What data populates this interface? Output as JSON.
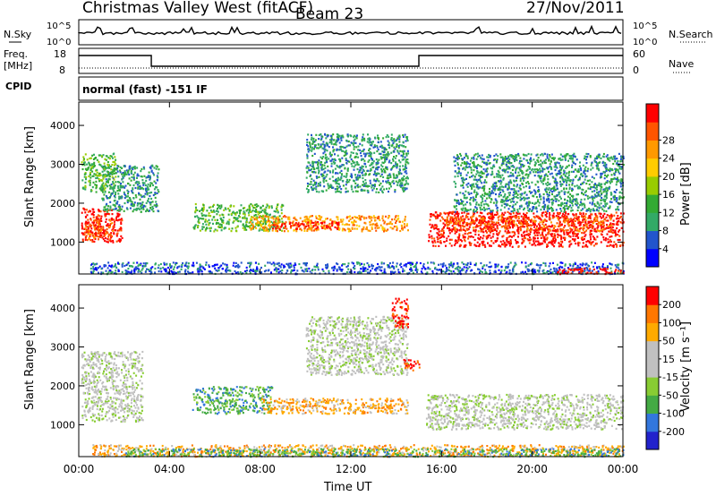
{
  "header": {
    "site": "Christmas Valley West (fitACF)",
    "beam": "Beam 23",
    "date": "27/Nov/2011"
  },
  "noise_panel": {
    "left_label": "N.Sky",
    "right_label": "N.Search",
    "left_ticks": [
      "10^5",
      "10^0"
    ],
    "right_ticks": [
      "10^5",
      "10^0"
    ]
  },
  "freq_panel": {
    "left_label": "Freq.",
    "left_unit": "[MHz]",
    "right_label": "Nave",
    "left_ticks": [
      "18",
      "8"
    ],
    "right_ticks": [
      "60",
      "0"
    ]
  },
  "cpid": {
    "label": "CPID",
    "text": "normal (fast) -151 IF"
  },
  "colors": {
    "power_scale": [
      "#0000ff",
      "#2255cc",
      "#33aa66",
      "#33aa33",
      "#99cc00",
      "#ffcc00",
      "#ff9900",
      "#ff5500",
      "#ff0000"
    ],
    "velocity_scale": [
      "#2222cc",
      "#3377dd",
      "#44aa44",
      "#88cc33",
      "#c0c0c0",
      "#c0c0c0",
      "#ffaa00",
      "#ff7700",
      "#ff0000"
    ]
  },
  "chart_data": [
    {
      "type": "heatmap",
      "panel": "power",
      "ylabel": "Slant Range [km]",
      "ylim": [
        180,
        4600
      ],
      "y_ticks": [
        "1000",
        "2000",
        "3000",
        "4000"
      ],
      "x_ticks": [
        "00:00",
        "04:00",
        "08:00",
        "12:00",
        "16:00",
        "20:00",
        "00:00"
      ],
      "xlim_hours": [
        0,
        24
      ],
      "colorbar_label": "Power [dB]",
      "colorbar_ticks": [
        "4",
        "8",
        "12",
        "16",
        "20",
        "24",
        "28"
      ],
      "scatter_regions": [
        {
          "t0": 0.1,
          "t1": 1.9,
          "r0": 1000,
          "r1": 1900,
          "level": 8
        },
        {
          "t0": 0.2,
          "t1": 1.5,
          "r0": 1100,
          "r1": 1600,
          "level": 7
        },
        {
          "t0": 1.0,
          "t1": 3.5,
          "r0": 1800,
          "r1": 3000,
          "level": 2
        },
        {
          "t0": 0.1,
          "t1": 1.6,
          "r0": 2300,
          "r1": 3300,
          "level": 3
        },
        {
          "t0": 5.0,
          "t1": 9.0,
          "r0": 1300,
          "r1": 2000,
          "level": 3
        },
        {
          "t0": 7.5,
          "t1": 14.5,
          "r0": 1300,
          "r1": 1700,
          "level": 6
        },
        {
          "t0": 8.5,
          "t1": 11.5,
          "r0": 1350,
          "r1": 1550,
          "level": 8
        },
        {
          "t0": 10.0,
          "t1": 14.5,
          "r0": 2300,
          "r1": 3800,
          "level": 2
        },
        {
          "t0": 15.4,
          "t1": 24.0,
          "r0": 900,
          "r1": 1800,
          "level": 8
        },
        {
          "t0": 16.0,
          "t1": 23.5,
          "r0": 1300,
          "r1": 1700,
          "level": 7
        },
        {
          "t0": 16.5,
          "t1": 24.0,
          "r0": 1800,
          "r1": 3300,
          "level": 2
        },
        {
          "t0": 0.5,
          "t1": 24.0,
          "r0": 200,
          "r1": 500,
          "level": 1
        },
        {
          "t0": 21.0,
          "t1": 24.0,
          "r0": 200,
          "r1": 350,
          "level": 8
        }
      ]
    },
    {
      "type": "heatmap",
      "panel": "velocity",
      "ylabel": "Slant Range [km]",
      "xlabel": "Time UT",
      "ylim": [
        180,
        4600
      ],
      "y_ticks": [
        "1000",
        "2000",
        "3000",
        "4000"
      ],
      "x_ticks": [
        "00:00",
        "04:00",
        "08:00",
        "12:00",
        "16:00",
        "20:00",
        "00:00"
      ],
      "xlim_hours": [
        0,
        24
      ],
      "colorbar_label": "Velocity [m s⁻¹]",
      "colorbar_ticks": [
        "200",
        "100",
        "50",
        "15",
        "-15",
        "-50",
        "-100",
        "-200"
      ],
      "scatter_regions": [
        {
          "t0": 0.1,
          "t1": 2.8,
          "r0": 1100,
          "r1": 2900,
          "level": 4
        },
        {
          "t0": 5.0,
          "t1": 8.5,
          "r0": 1300,
          "r1": 2000,
          "level": 2
        },
        {
          "t0": 8.0,
          "t1": 14.5,
          "r0": 1300,
          "r1": 1700,
          "level": 6
        },
        {
          "t0": 10.0,
          "t1": 14.5,
          "r0": 2300,
          "r1": 3800,
          "level": 4
        },
        {
          "t0": 13.8,
          "t1": 14.5,
          "r0": 3500,
          "r1": 4300,
          "level": 8
        },
        {
          "t0": 14.3,
          "t1": 15.0,
          "r0": 2400,
          "r1": 2700,
          "level": 8
        },
        {
          "t0": 15.3,
          "t1": 24.0,
          "r0": 900,
          "r1": 1800,
          "level": 4
        },
        {
          "t0": 0.5,
          "t1": 24.0,
          "r0": 200,
          "r1": 500,
          "level": 6
        },
        {
          "t0": 2.0,
          "t1": 24.0,
          "r0": 200,
          "r1": 400,
          "level": 2
        }
      ]
    }
  ]
}
